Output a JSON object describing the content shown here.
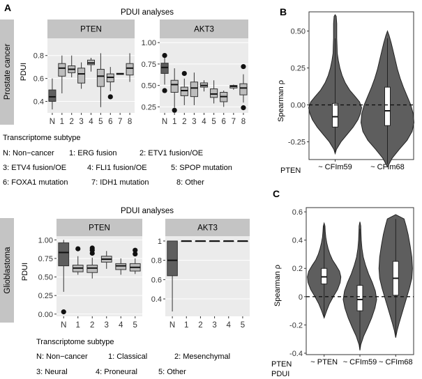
{
  "panel_letters": {
    "a": "A",
    "b": "B",
    "c": "C"
  },
  "analysis_title": "PDUI analyses",
  "strip_labels": {
    "pten": "PTEN",
    "akt3": "AKT3"
  },
  "row_labels": {
    "prostate": "Prostate cancer",
    "gbm": "Glioblastoma"
  },
  "legend_title": "Transcriptome subtype",
  "prostate_legend": [
    [
      "N: Non−cancer",
      "1: ERG fusion",
      "2: ETV1 fusion/OE"
    ],
    [
      "3: ETV4 fusion/OE",
      "4: FLI1 fusion/OE",
      "5: SPOP mutation"
    ],
    [
      "6: FOXA1 mutation",
      "7: IDH1 mutation",
      "8: Other"
    ]
  ],
  "gbm_legend": [
    [
      "N: Non−cancer",
      "1: Classical",
      "2: Mesenchymal"
    ],
    [
      "3: Neural",
      "4: Proneural",
      "5: Other"
    ]
  ],
  "colors": {
    "dark": "#5e5e5e",
    "light": "#bdbdbd",
    "panel_bg": "#ebebeb",
    "strip_bg": "#c4c4c4"
  },
  "chart_data": [
    {
      "id": "prostate_pten",
      "type": "box",
      "title": "PTEN",
      "ylabel": "PDUI",
      "ylim": [
        0.3,
        0.95
      ],
      "yticks": [
        0.4,
        0.6,
        0.8
      ],
      "categories": [
        "N",
        "1",
        "2",
        "3",
        "4",
        "5",
        "6",
        "7",
        "8"
      ],
      "boxes": [
        {
          "q1": 0.4,
          "median": 0.44,
          "q3": 0.5,
          "whislo": 0.33,
          "whishi": 0.6,
          "outliers": []
        },
        {
          "q1": 0.62,
          "median": 0.69,
          "q3": 0.73,
          "whislo": 0.47,
          "whishi": 0.8,
          "outliers": []
        },
        {
          "q1": 0.65,
          "median": 0.68,
          "q3": 0.71,
          "whislo": 0.61,
          "whishi": 0.8,
          "outliers": []
        },
        {
          "q1": 0.56,
          "median": 0.64,
          "q3": 0.69,
          "whislo": 0.51,
          "whishi": 0.74,
          "outliers": []
        },
        {
          "q1": 0.72,
          "median": 0.735,
          "q3": 0.76,
          "whislo": 0.66,
          "whishi": 0.78,
          "outliers": []
        },
        {
          "q1": 0.53,
          "median": 0.62,
          "q3": 0.68,
          "whislo": 0.35,
          "whishi": 0.82,
          "outliers": []
        },
        {
          "q1": 0.57,
          "median": 0.61,
          "q3": 0.64,
          "whislo": 0.49,
          "whishi": 0.7,
          "outliers": [
            0.44
          ]
        },
        {
          "q1": 0.635,
          "median": 0.64,
          "q3": 0.645,
          "whislo": 0.635,
          "whishi": 0.645,
          "outliers": []
        },
        {
          "q1": 0.63,
          "median": 0.69,
          "q3": 0.73,
          "whislo": 0.57,
          "whishi": 0.82,
          "outliers": []
        }
      ]
    },
    {
      "id": "prostate_akt3",
      "type": "box",
      "title": "AKT3",
      "ylabel": "",
      "ylim": [
        0.18,
        1.05
      ],
      "yticks": [
        0.25,
        0.5,
        0.75,
        1.0
      ],
      "ytick_labels": [
        "0.25",
        "0.50",
        "0.75",
        "1.00"
      ],
      "categories": [
        "N",
        "1",
        "2",
        "3",
        "4",
        "5",
        "6",
        "7",
        "8"
      ],
      "boxes": [
        {
          "q1": 0.64,
          "median": 0.71,
          "q3": 0.76,
          "whislo": 0.51,
          "whishi": 0.83,
          "outliers": [
            0.44,
            0.85
          ]
        },
        {
          "q1": 0.42,
          "median": 0.51,
          "q3": 0.56,
          "whislo": 0.24,
          "whishi": 0.7,
          "outliers": [
            0.21
          ]
        },
        {
          "q1": 0.38,
          "median": 0.44,
          "q3": 0.48,
          "whislo": 0.27,
          "whishi": 0.58,
          "outliers": [
            0.64
          ]
        },
        {
          "q1": 0.37,
          "median": 0.47,
          "q3": 0.54,
          "whislo": 0.27,
          "whishi": 0.65,
          "outliers": []
        },
        {
          "q1": 0.48,
          "median": 0.5,
          "q3": 0.53,
          "whislo": 0.43,
          "whishi": 0.56,
          "outliers": []
        },
        {
          "q1": 0.36,
          "median": 0.4,
          "q3": 0.46,
          "whislo": 0.29,
          "whishi": 0.56,
          "outliers": []
        },
        {
          "q1": 0.31,
          "median": 0.37,
          "q3": 0.42,
          "whislo": 0.25,
          "whishi": 0.44,
          "outliers": []
        },
        {
          "q1": 0.47,
          "median": 0.49,
          "q3": 0.5,
          "whislo": 0.45,
          "whishi": 0.51,
          "outliers": []
        },
        {
          "q1": 0.39,
          "median": 0.47,
          "q3": 0.52,
          "whislo": 0.3,
          "whishi": 0.63,
          "outliers": [
            0.24,
            0.72
          ]
        }
      ]
    },
    {
      "id": "gbm_pten",
      "type": "box",
      "title": "PTEN",
      "ylabel": "PDUI",
      "ylim": [
        -0.03,
        1.05
      ],
      "yticks": [
        0.0,
        0.25,
        0.5,
        0.75,
        1.0
      ],
      "ytick_labels": [
        "0.00",
        "0.25",
        "0.50",
        "0.75",
        "1.00"
      ],
      "categories": [
        "N",
        "1",
        "2",
        "3",
        "4",
        "5"
      ],
      "boxes": [
        {
          "q1": 0.65,
          "median": 0.83,
          "q3": 0.96,
          "whislo": 0.3,
          "whishi": 1.0,
          "outliers": [
            0.03
          ]
        },
        {
          "q1": 0.57,
          "median": 0.62,
          "q3": 0.66,
          "whislo": 0.53,
          "whishi": 0.78,
          "outliers": [
            0.88
          ]
        },
        {
          "q1": 0.56,
          "median": 0.62,
          "q3": 0.66,
          "whislo": 0.48,
          "whishi": 0.76,
          "outliers": [
            0.82,
            0.86,
            0.89
          ]
        },
        {
          "q1": 0.7,
          "median": 0.74,
          "q3": 0.78,
          "whislo": 0.61,
          "whishi": 0.85,
          "outliers": []
        },
        {
          "q1": 0.6,
          "median": 0.65,
          "q3": 0.68,
          "whislo": 0.53,
          "whishi": 0.75,
          "outliers": []
        },
        {
          "q1": 0.58,
          "median": 0.63,
          "q3": 0.68,
          "whislo": 0.54,
          "whishi": 0.75,
          "outliers": [
            0.81,
            0.86
          ]
        }
      ]
    },
    {
      "id": "gbm_akt3",
      "type": "box",
      "title": "AKT3",
      "ylabel": "",
      "ylim": [
        0.22,
        1.05
      ],
      "yticks": [
        0.4,
        0.6,
        0.8,
        1.0
      ],
      "categories": [
        "N",
        "1",
        "2",
        "3",
        "4",
        "5"
      ],
      "boxes": [
        {
          "q1": 0.64,
          "median": 0.8,
          "q3": 1.0,
          "whislo": 0.27,
          "whishi": 1.0,
          "outliers": []
        },
        {
          "q1": 1.0,
          "median": 1.0,
          "q3": 1.0,
          "whislo": 1.0,
          "whishi": 1.0,
          "outliers": []
        },
        {
          "q1": 1.0,
          "median": 1.0,
          "q3": 1.0,
          "whislo": 1.0,
          "whishi": 1.0,
          "outliers": []
        },
        {
          "q1": 1.0,
          "median": 1.0,
          "q3": 1.0,
          "whislo": 1.0,
          "whishi": 1.0,
          "outliers": []
        },
        {
          "q1": 1.0,
          "median": 1.0,
          "q3": 1.0,
          "whislo": 1.0,
          "whishi": 1.0,
          "outliers": []
        },
        {
          "q1": 1.0,
          "median": 1.0,
          "q3": 1.0,
          "whislo": 1.0,
          "whishi": 1.0,
          "outliers": []
        }
      ]
    },
    {
      "id": "panel_b",
      "type": "violin",
      "ylabel": "Spearman ρ",
      "ylim": [
        -0.37,
        0.63
      ],
      "yticks": [
        -0.25,
        0.0,
        0.25,
        0.5
      ],
      "ytick_labels": [
        "-0.25",
        "0.00",
        "0.25",
        "0.50"
      ],
      "xprefix": [
        "PTEN"
      ],
      "categories": [
        "~ CFIm59",
        "~ CFIm68"
      ],
      "reference_line": 0,
      "violins": [
        {
          "profile": [
            [
              -0.33,
              0
            ],
            [
              -0.3,
              0.05
            ],
            [
              -0.25,
              0.22
            ],
            [
              -0.2,
              0.45
            ],
            [
              -0.15,
              0.68
            ],
            [
              -0.1,
              0.86
            ],
            [
              -0.06,
              0.95
            ],
            [
              -0.02,
              1.0
            ],
            [
              0.02,
              0.92
            ],
            [
              0.06,
              0.74
            ],
            [
              0.1,
              0.55
            ],
            [
              0.15,
              0.38
            ],
            [
              0.2,
              0.26
            ],
            [
              0.25,
              0.18
            ],
            [
              0.3,
              0.12
            ],
            [
              0.35,
              0.08
            ],
            [
              0.4,
              0.07
            ],
            [
              0.45,
              0.06
            ],
            [
              0.5,
              0.06
            ],
            [
              0.55,
              0.06
            ],
            [
              0.6,
              0.04
            ],
            [
              0.61,
              0
            ]
          ],
          "q1": -0.15,
          "median": -0.08,
          "q3": 0.01,
          "whislo": -0.33,
          "whishi": 0.45
        },
        {
          "profile": [
            [
              -0.42,
              0
            ],
            [
              -0.36,
              0.18
            ],
            [
              -0.3,
              0.45
            ],
            [
              -0.24,
              0.74
            ],
            [
              -0.18,
              0.93
            ],
            [
              -0.12,
              1.0
            ],
            [
              -0.06,
              0.97
            ],
            [
              0.0,
              0.88
            ],
            [
              0.06,
              0.74
            ],
            [
              0.12,
              0.6
            ],
            [
              0.18,
              0.48
            ],
            [
              0.24,
              0.38
            ],
            [
              0.3,
              0.3
            ],
            [
              0.36,
              0.22
            ],
            [
              0.42,
              0.14
            ],
            [
              0.47,
              0.06
            ],
            [
              0.5,
              0
            ]
          ],
          "q1": -0.14,
          "median": -0.04,
          "q3": 0.12,
          "whislo": -0.4,
          "whishi": 0.45
        }
      ]
    },
    {
      "id": "panel_c",
      "type": "violin",
      "ylabel": "Spearman ρ",
      "ylim": [
        -0.41,
        0.63
      ],
      "yticks": [
        -0.4,
        -0.2,
        0.0,
        0.2,
        0.4,
        0.6
      ],
      "xprefix": [
        "PTEN",
        "PDUI"
      ],
      "categories": [
        "~ PTEN",
        "~ CFIm59",
        "~ CFIm68"
      ],
      "reference_line": 0,
      "violins": [
        {
          "profile": [
            [
              -0.15,
              0
            ],
            [
              -0.1,
              0.15
            ],
            [
              -0.05,
              0.32
            ],
            [
              0.0,
              0.55
            ],
            [
              0.05,
              0.8
            ],
            [
              0.1,
              0.96
            ],
            [
              0.14,
              1.0
            ],
            [
              0.18,
              0.92
            ],
            [
              0.22,
              0.72
            ],
            [
              0.26,
              0.5
            ],
            [
              0.3,
              0.35
            ],
            [
              0.34,
              0.24
            ],
            [
              0.38,
              0.16
            ],
            [
              0.42,
              0.1
            ],
            [
              0.46,
              0.07
            ],
            [
              0.5,
              0.05
            ],
            [
              0.52,
              0
            ]
          ],
          "q1": 0.09,
          "median": 0.14,
          "q3": 0.2,
          "whislo": -0.15,
          "whishi": 0.5
        },
        {
          "profile": [
            [
              -0.38,
              0
            ],
            [
              -0.34,
              0.05
            ],
            [
              -0.28,
              0.22
            ],
            [
              -0.22,
              0.45
            ],
            [
              -0.15,
              0.7
            ],
            [
              -0.08,
              0.9
            ],
            [
              -0.02,
              1.0
            ],
            [
              0.04,
              0.92
            ],
            [
              0.1,
              0.74
            ],
            [
              0.16,
              0.52
            ],
            [
              0.22,
              0.34
            ],
            [
              0.28,
              0.2
            ],
            [
              0.34,
              0.12
            ],
            [
              0.4,
              0.08
            ],
            [
              0.46,
              0.06
            ],
            [
              0.5,
              0.05
            ],
            [
              0.53,
              0
            ]
          ],
          "q1": -0.1,
          "median": -0.02,
          "q3": 0.08,
          "whislo": -0.36,
          "whishi": 0.48
        },
        {
          "profile": [
            [
              -0.29,
              0
            ],
            [
              -0.24,
              0.08
            ],
            [
              -0.18,
              0.22
            ],
            [
              -0.1,
              0.42
            ],
            [
              -0.02,
              0.62
            ],
            [
              0.06,
              0.82
            ],
            [
              0.13,
              0.96
            ],
            [
              0.2,
              1.0
            ],
            [
              0.28,
              0.96
            ],
            [
              0.36,
              0.86
            ],
            [
              0.44,
              0.74
            ],
            [
              0.5,
              0.62
            ],
            [
              0.55,
              0.5
            ],
            [
              0.58,
              0
            ]
          ],
          "q1": 0.01,
          "median": 0.13,
          "q3": 0.25,
          "whislo": -0.27,
          "whishi": 0.55
        }
      ]
    }
  ]
}
